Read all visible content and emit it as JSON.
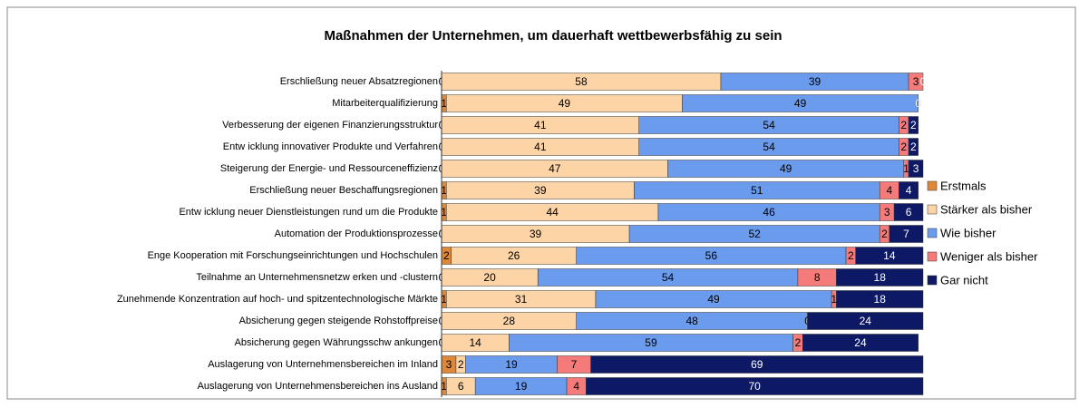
{
  "chart_data": {
    "type": "stacked-bar-horizontal",
    "title": "Maßnahmen der Unternehmen, um dauerhaft wettbewerbsfähig zu sein",
    "categories": [
      "Erschließung neuer Absatzregionen",
      "Mitarbeiterqualifizierung",
      "Verbesserung der eigenen Finanzierungsstruktur",
      "Entw icklung innovativer Produkte und Verfahren",
      "Steigerung der Energie- und Ressourceneffizienz",
      "Erschließung neuer Beschaffungsregionen",
      "Entw icklung neuer Dienstleistungen rund um die Produkte",
      "Automation der Produktionsprozesse",
      "Enge Kooperation mit Forschungseinrichtungen und Hochschulen",
      "Teilnahme an Unternehmensnetzw erken und -clustern",
      "Zunehmende Konzentration auf hoch- und spitzentechnologische Märkte",
      "Absicherung gegen steigende Rohstoffpreise",
      "Absicherung gegen Währungsschw ankungen",
      "Auslagerung von Unternehmensbereichen im Inland",
      "Auslagerung von Unternehmensbereichen ins Ausland"
    ],
    "series": [
      {
        "name": "Erstmals",
        "color": "#e0883a",
        "values": [
          0,
          1,
          0,
          0,
          0,
          1,
          1,
          0,
          2,
          0,
          1,
          0,
          0,
          3,
          1
        ]
      },
      {
        "name": "Stärker als bisher",
        "color": "#fdd4a6",
        "values": [
          58,
          49,
          41,
          41,
          47,
          39,
          44,
          39,
          26,
          20,
          31,
          28,
          14,
          2,
          6
        ]
      },
      {
        "name": "Wie bisher",
        "color": "#6a9bec",
        "values": [
          39,
          49,
          54,
          54,
          49,
          51,
          46,
          52,
          56,
          54,
          49,
          48,
          59,
          19,
          19
        ]
      },
      {
        "name": "Weniger als bisher",
        "color": "#f57b7b",
        "values": [
          3,
          0,
          2,
          2,
          1,
          4,
          3,
          2,
          2,
          8,
          1,
          0,
          2,
          7,
          4
        ]
      },
      {
        "name": "Gar nicht",
        "color": "#0e1966",
        "values": [
          0,
          0,
          2,
          2,
          3,
          4,
          6,
          7,
          14,
          18,
          18,
          24,
          24,
          69,
          70
        ]
      }
    ],
    "xlim": [
      0,
      100
    ],
    "legend": "right"
  }
}
